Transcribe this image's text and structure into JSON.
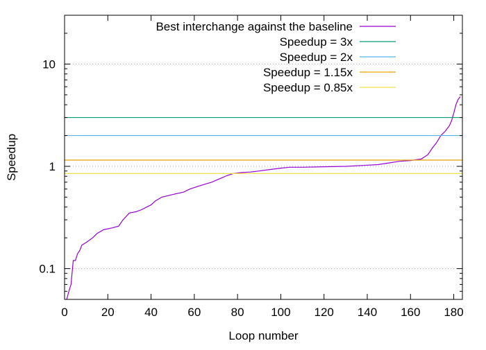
{
  "chart_data": {
    "type": "line",
    "title": "",
    "xlabel": "Loop number",
    "ylabel": "Speedup",
    "y_scale": "log",
    "xlim": [
      0,
      184
    ],
    "ylim": [
      0.05,
      30
    ],
    "x_ticks": [
      0,
      20,
      40,
      60,
      80,
      100,
      120,
      140,
      160,
      180
    ],
    "y_ticks": [
      {
        "value": 0.1,
        "label": "0.1"
      },
      {
        "value": 1,
        "label": "1"
      },
      {
        "value": 10,
        "label": "10"
      }
    ],
    "grid": "dotted horizontal lines at y tick values",
    "legend_position": "top-right",
    "series": [
      {
        "name": "Best interchange against the baseline",
        "color": "#9400d3",
        "kind": "curve",
        "x": [
          1,
          2,
          3,
          4,
          5,
          6,
          7,
          8,
          10,
          13,
          15,
          18,
          22,
          25,
          27,
          30,
          33,
          36,
          38,
          40,
          42,
          45,
          50,
          55,
          58,
          62,
          65,
          68,
          72,
          75,
          78,
          82,
          86,
          90,
          95,
          100,
          104,
          110,
          120,
          130,
          138,
          145,
          150,
          155,
          160,
          165,
          168,
          170,
          172,
          174,
          176,
          178,
          179,
          180,
          181,
          182,
          183
        ],
        "y": [
          0.05,
          0.06,
          0.07,
          0.12,
          0.12,
          0.14,
          0.15,
          0.17,
          0.18,
          0.2,
          0.22,
          0.24,
          0.25,
          0.26,
          0.3,
          0.35,
          0.36,
          0.38,
          0.4,
          0.42,
          0.46,
          0.5,
          0.53,
          0.56,
          0.6,
          0.64,
          0.67,
          0.7,
          0.76,
          0.81,
          0.85,
          0.87,
          0.88,
          0.9,
          0.93,
          0.96,
          0.98,
          0.98,
          0.99,
          1.0,
          1.02,
          1.04,
          1.08,
          1.12,
          1.14,
          1.18,
          1.3,
          1.5,
          1.7,
          2.0,
          2.2,
          2.5,
          2.8,
          3.3,
          4.0,
          4.5,
          4.8
        ]
      },
      {
        "name": "Speedup = 3x",
        "color": "#009e73",
        "kind": "hline",
        "value": 3
      },
      {
        "name": "Speedup = 2x",
        "color": "#56b4e9",
        "kind": "hline",
        "value": 2
      },
      {
        "name": "Speedup = 1.15x",
        "color": "#e69f00",
        "kind": "hline",
        "value": 1.15
      },
      {
        "name": "Speedup = 0.85x",
        "color": "#f0e442",
        "kind": "hline",
        "value": 0.85
      }
    ]
  }
}
